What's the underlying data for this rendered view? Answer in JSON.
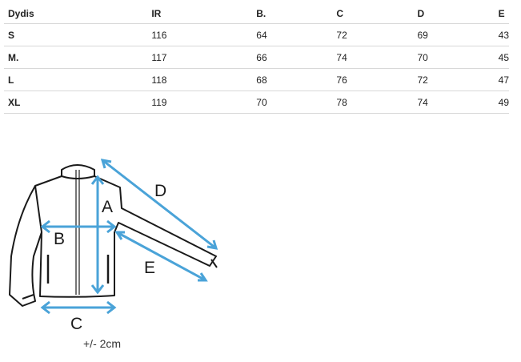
{
  "table": {
    "headers": [
      "Dydis",
      "IR",
      "B.",
      "C",
      "D",
      "E"
    ],
    "rows": [
      [
        "S",
        "116",
        "64",
        "72",
        "69",
        "43"
      ],
      [
        "M.",
        "117",
        "66",
        "74",
        "70",
        "45"
      ],
      [
        "L",
        "118",
        "68",
        "76",
        "72",
        "47"
      ],
      [
        "XL",
        "119",
        "70",
        "78",
        "74",
        "49"
      ]
    ]
  },
  "diagram": {
    "labels": {
      "A": "A",
      "B": "B",
      "C": "C",
      "D": "D",
      "E": "E"
    },
    "tolerance": "+/- 2cm",
    "arrow_color": "#4aa3d8",
    "outline_color": "#1a1a1a"
  }
}
